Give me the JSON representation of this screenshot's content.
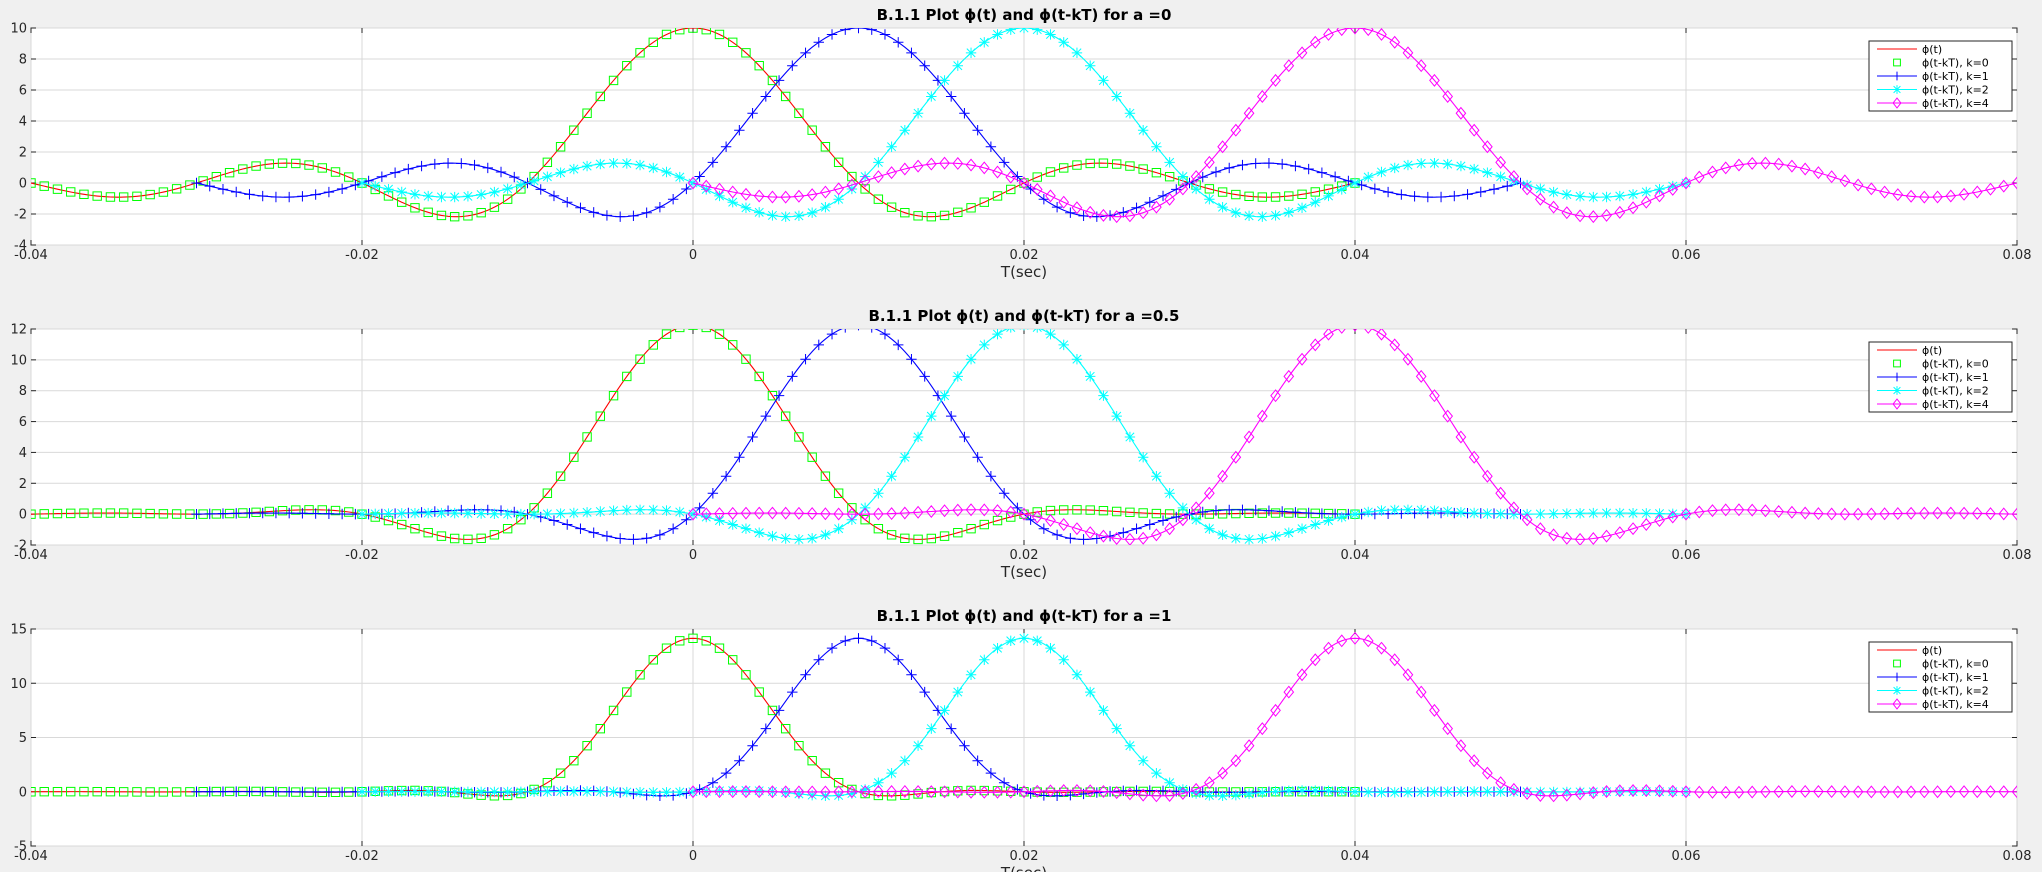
{
  "chart_data": [
    {
      "type": "line",
      "title": "B.1.1 Plot ϕ(t) and ϕ(t-kT) for a =0",
      "alpha": 0,
      "xlabel": "T(sec)",
      "ylabel": "",
      "xlim": [
        -0.04,
        0.08
      ],
      "ylim": [
        -4,
        10
      ],
      "xticks": [
        -0.04,
        -0.02,
        0,
        0.02,
        0.04,
        0.06,
        0.08
      ],
      "xtick_labels": [
        "-0.04",
        "-0.02",
        "0",
        "0.02",
        "0.04",
        "0.06",
        "0.08"
      ],
      "yticks": [
        -4,
        -2,
        0,
        2,
        4,
        6,
        8,
        10
      ],
      "ytick_labels": [
        "-4",
        "-2",
        "0",
        "2",
        "4",
        "6",
        "8",
        "10"
      ],
      "grid": true,
      "legend_position": "top-right",
      "series": [
        {
          "name": "ϕ(t)",
          "color": "#ff0000",
          "marker": "none",
          "shift": 0,
          "x_range": [
            -0.04,
            0.04
          ]
        },
        {
          "name": "ϕ(t-kT), k=0",
          "color": "#00ff00",
          "marker": "square",
          "shift": 0,
          "x_range": [
            -0.04,
            0.04
          ]
        },
        {
          "name": "ϕ(t-kT), k=1",
          "color": "#0000ff",
          "marker": "plus",
          "shift": 0.01,
          "x_range": [
            -0.03,
            0.05
          ]
        },
        {
          "name": "ϕ(t-kT), k=2",
          "color": "#00ffff",
          "marker": "asterisk",
          "shift": 0.02,
          "x_range": [
            -0.02,
            0.06
          ]
        },
        {
          "name": "ϕ(t-kT), k=4",
          "color": "#ff00ff",
          "marker": "diamond",
          "shift": 0.04,
          "x_range": [
            0,
            0.08
          ]
        }
      ]
    },
    {
      "type": "line",
      "title": "B.1.1 Plot ϕ(t) and ϕ(t-kT) for a =0.5",
      "alpha": 0.5,
      "xlabel": "T(sec)",
      "ylabel": "",
      "xlim": [
        -0.04,
        0.08
      ],
      "ylim": [
        -2,
        12
      ],
      "xticks": [
        -0.04,
        -0.02,
        0,
        0.02,
        0.04,
        0.06,
        0.08
      ],
      "xtick_labels": [
        "-0.04",
        "-0.02",
        "0",
        "0.02",
        "0.04",
        "0.06",
        "0.08"
      ],
      "yticks": [
        -2,
        0,
        2,
        4,
        6,
        8,
        10,
        12
      ],
      "ytick_labels": [
        "-2",
        "0",
        "2",
        "4",
        "6",
        "8",
        "10",
        "12"
      ],
      "grid": true,
      "legend_position": "top-right",
      "series": [
        {
          "name": "ϕ(t)",
          "color": "#ff0000",
          "marker": "none",
          "shift": 0,
          "x_range": [
            -0.04,
            0.04
          ]
        },
        {
          "name": "ϕ(t-kT), k=0",
          "color": "#00ff00",
          "marker": "square",
          "shift": 0,
          "x_range": [
            -0.04,
            0.04
          ]
        },
        {
          "name": "ϕ(t-kT), k=1",
          "color": "#0000ff",
          "marker": "plus",
          "shift": 0.01,
          "x_range": [
            -0.03,
            0.05
          ]
        },
        {
          "name": "ϕ(t-kT), k=2",
          "color": "#00ffff",
          "marker": "asterisk",
          "shift": 0.02,
          "x_range": [
            -0.02,
            0.06
          ]
        },
        {
          "name": "ϕ(t-kT), k=4",
          "color": "#ff00ff",
          "marker": "diamond",
          "shift": 0.04,
          "x_range": [
            0,
            0.08
          ]
        }
      ]
    },
    {
      "type": "line",
      "title": "B.1.1 Plot ϕ(t) and ϕ(t-kT) for a =1",
      "alpha": 1,
      "xlabel": "T(sec)",
      "ylabel": "",
      "xlim": [
        -0.04,
        0.08
      ],
      "ylim": [
        -5,
        15
      ],
      "xticks": [
        -0.04,
        -0.02,
        0,
        0.02,
        0.04,
        0.06,
        0.08
      ],
      "xtick_labels": [
        "-0.04",
        "-0.02",
        "0",
        "0.02",
        "0.04",
        "0.06",
        "0.08"
      ],
      "yticks": [
        -5,
        0,
        5,
        10,
        15
      ],
      "ytick_labels": [
        "-5",
        "0",
        "5",
        "10",
        "15"
      ],
      "grid": true,
      "legend_position": "top-right",
      "series": [
        {
          "name": "ϕ(t)",
          "color": "#ff0000",
          "marker": "none",
          "shift": 0,
          "x_range": [
            -0.04,
            0.04
          ]
        },
        {
          "name": "ϕ(t-kT), k=0",
          "color": "#00ff00",
          "marker": "square",
          "shift": 0,
          "x_range": [
            -0.04,
            0.04
          ]
        },
        {
          "name": "ϕ(t-kT), k=1",
          "color": "#0000ff",
          "marker": "plus",
          "shift": 0.01,
          "x_range": [
            -0.03,
            0.05
          ]
        },
        {
          "name": "ϕ(t-kT), k=2",
          "color": "#00ffff",
          "marker": "asterisk",
          "shift": 0.02,
          "x_range": [
            -0.02,
            0.06
          ]
        },
        {
          "name": "ϕ(t-kT), k=4",
          "color": "#ff00ff",
          "marker": "diamond",
          "shift": 0.04,
          "x_range": [
            0,
            0.08
          ]
        }
      ]
    }
  ]
}
